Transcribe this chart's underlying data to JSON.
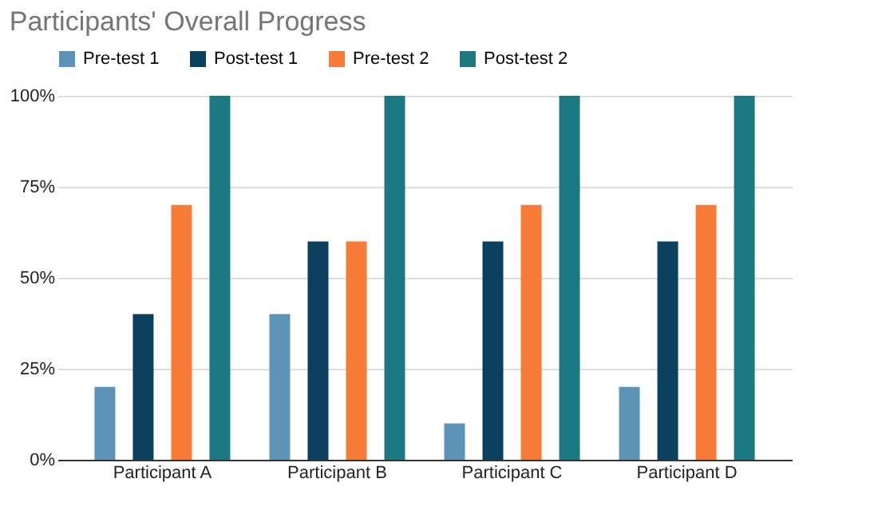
{
  "chart_data": {
    "type": "bar",
    "title": "Participants' Overall Progress",
    "categories": [
      "Participant A",
      "Participant B",
      "Participant C",
      "Participant D"
    ],
    "series": [
      {
        "name": "Pre-test 1",
        "color": "#5e93b8",
        "values": [
          20,
          40,
          10,
          20
        ]
      },
      {
        "name": "Post-test 1",
        "color": "#0b3f5e",
        "values": [
          40,
          60,
          60,
          60
        ]
      },
      {
        "name": "Pre-test 2",
        "color": "#f87b37",
        "values": [
          70,
          60,
          70,
          70
        ]
      },
      {
        "name": "Post-test 2",
        "color": "#1c7883",
        "values": [
          100,
          100,
          100,
          100
        ]
      }
    ],
    "ylim": [
      0,
      100
    ],
    "yticks": [
      {
        "value": 0,
        "label": "0%"
      },
      {
        "value": 25,
        "label": "25%"
      },
      {
        "value": 50,
        "label": "50%"
      },
      {
        "value": 75,
        "label": "75%"
      },
      {
        "value": 100,
        "label": "100%"
      }
    ],
    "grid": "y",
    "legend": "top"
  }
}
